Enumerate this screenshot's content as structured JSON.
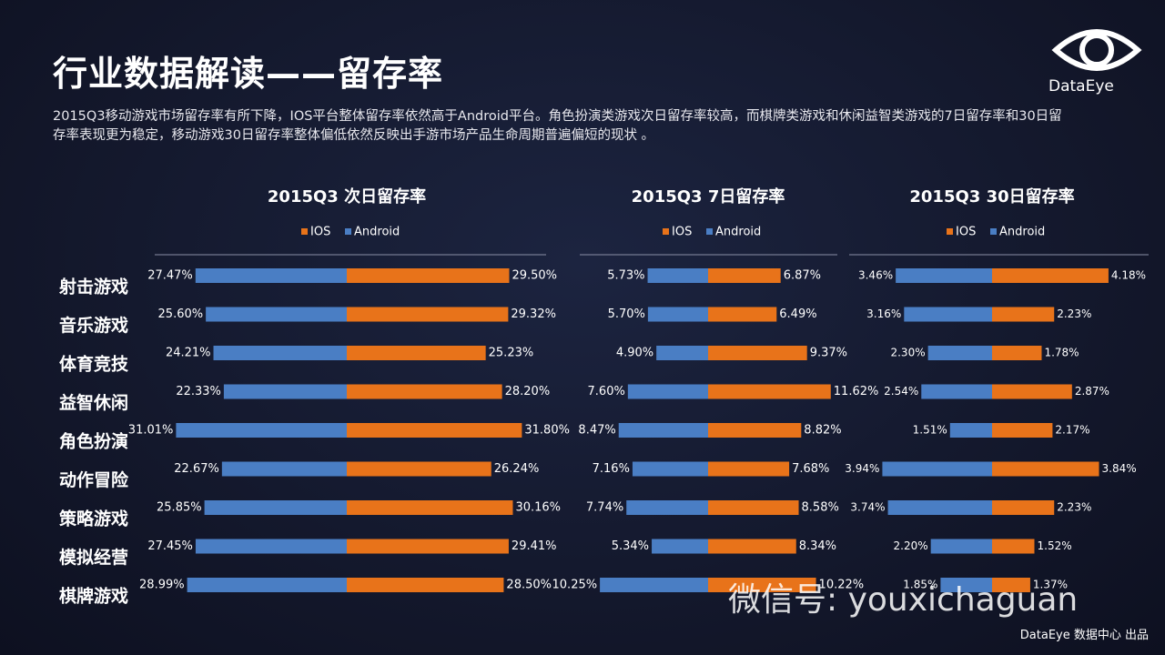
{
  "header": {
    "title": "行业数据解读——留存率",
    "description": "2015Q3移动游戏市场留存率有所下降，IOS平台整体留存率依然高于Android平台。角色扮演类游戏次日留存率较高，而棋牌类游戏和休闲益智类游戏的7日留存率和30日留存率表现更为稳定，移动游戏30日留存率整体偏低依然反映出手游市场产品生命周期普遍偏短的现状 。"
  },
  "logo": "DataEye",
  "footer": "DataEye 数据中心 出品",
  "watermark": "微信号: youxichaguan",
  "chart_data": [
    {
      "type": "bar",
      "title": "2015Q3  次日留存率",
      "categories": [
        "射击游戏",
        "音乐游戏",
        "体育竞技",
        "益智休闲",
        "角色扮演",
        "动作冒险",
        "策略游戏",
        "模拟经营",
        "棋牌游戏"
      ],
      "series": [
        {
          "name": "IOS",
          "color": "#e8731a",
          "values": [
            29.5,
            29.32,
            25.23,
            28.2,
            31.8,
            26.24,
            30.16,
            29.41,
            28.5
          ],
          "value_labels": [
            "29.50%",
            "29.32%",
            "25.23%",
            "28.20%",
            "31.80%",
            "26.24%",
            "30.16%",
            "29.41%",
            "28.50%"
          ]
        },
        {
          "name": "Android",
          "color": "#4a7ec4",
          "values": [
            27.47,
            25.6,
            24.21,
            22.33,
            31.01,
            22.67,
            25.85,
            27.45,
            28.99
          ],
          "value_labels": [
            "27.47%",
            "25.60%",
            "24.21%",
            "22.33%",
            "31.01%",
            "22.67%",
            "25.85%",
            "27.45%",
            "28.99%"
          ]
        }
      ]
    },
    {
      "type": "bar",
      "title": "2015Q3  7日留存率",
      "series": [
        {
          "name": "IOS",
          "color": "#e8731a",
          "values": [
            6.87,
            6.49,
            9.37,
            11.62,
            8.82,
            7.68,
            8.58,
            8.34,
            10.22
          ],
          "value_labels": [
            "6.87%",
            "6.49%",
            "9.37%",
            "11.62%",
            "8.82%",
            "7.68%",
            "8.58%",
            "8.34%",
            "10.22%"
          ]
        },
        {
          "name": "Android",
          "color": "#4a7ec4",
          "values": [
            5.73,
            5.7,
            4.9,
            7.6,
            8.47,
            7.16,
            7.74,
            5.34,
            10.25
          ],
          "value_labels": [
            "5.73%",
            "5.70%",
            "4.90%",
            "7.60%",
            "8.47%",
            "7.16%",
            "7.74%",
            "5.34%",
            "10.25%"
          ]
        }
      ]
    },
    {
      "type": "bar",
      "title": "2015Q3 30日留存率",
      "series": [
        {
          "name": "IOS",
          "color": "#e8731a",
          "values": [
            4.18,
            2.23,
            1.78,
            2.87,
            2.17,
            3.84,
            2.23,
            1.52,
            1.37
          ],
          "value_labels": [
            "4.18%",
            "2.23%",
            "1.78%",
            "2.87%",
            "2.17%",
            "3.84%",
            "2.23%",
            "1.52%",
            "1.37%"
          ]
        },
        {
          "name": "Android",
          "color": "#4a7ec4",
          "values": [
            3.46,
            3.16,
            2.3,
            2.54,
            1.51,
            3.94,
            3.74,
            2.2,
            1.85
          ],
          "value_labels": [
            "3.46%",
            "3.16%",
            "2.30%",
            "2.54%",
            "1.51%",
            "3.94%",
            "3.74%",
            "2.20%",
            "1.85%"
          ]
        }
      ]
    }
  ]
}
